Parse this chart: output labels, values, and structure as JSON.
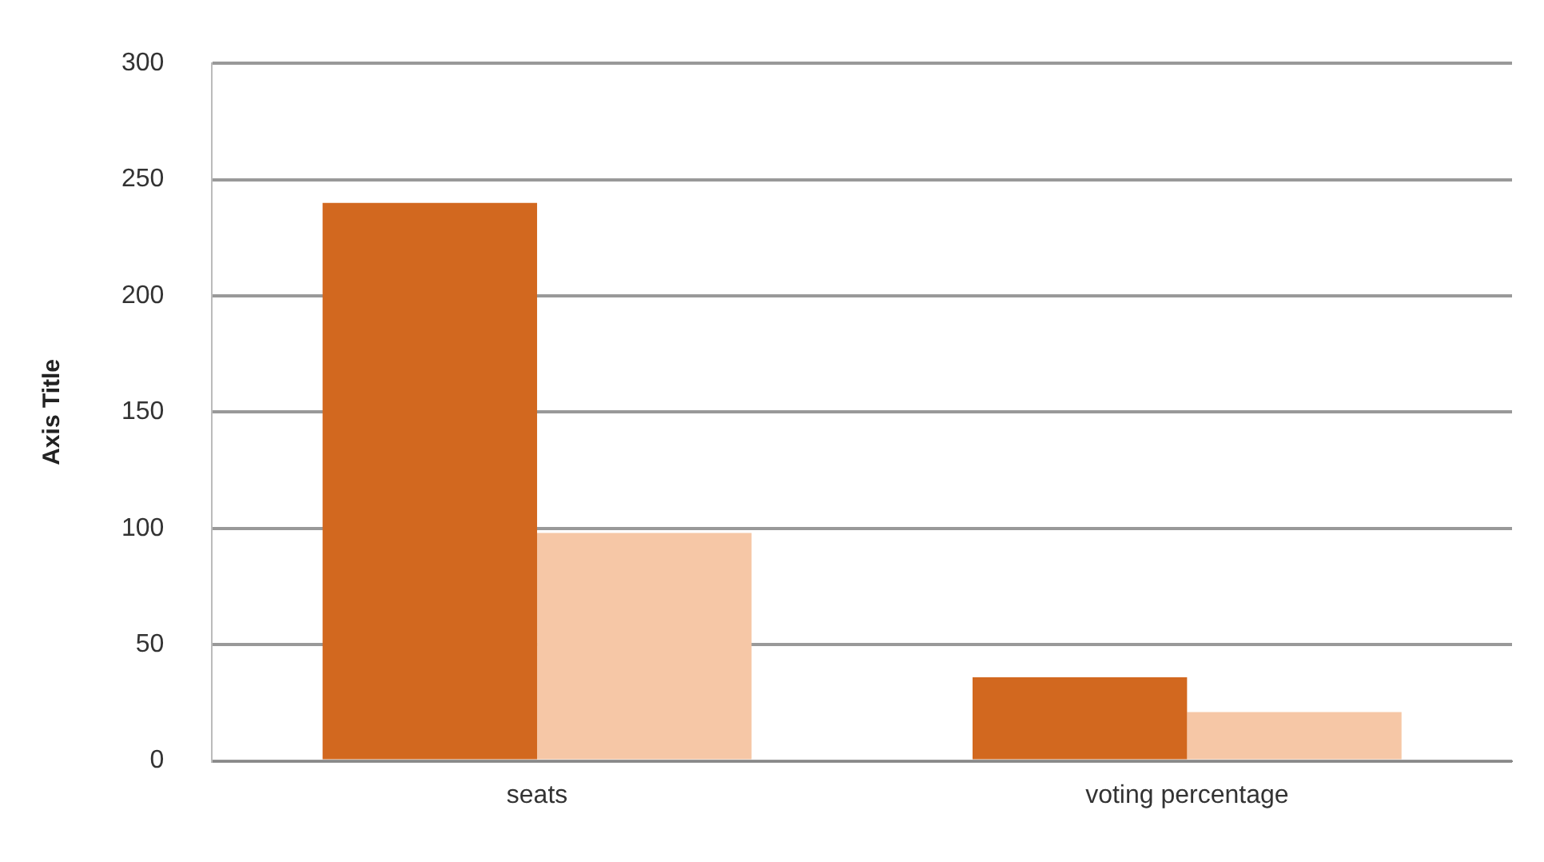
{
  "chart_data": {
    "type": "bar",
    "ylabel": "Axis Title",
    "categories": [
      "seats",
      "voting percentage"
    ],
    "series": [
      {
        "color": "#d2681f",
        "values": [
          240,
          36
        ]
      },
      {
        "color": "#f6c7a6",
        "values": [
          98,
          21
        ]
      }
    ],
    "ylim": [
      0,
      300
    ],
    "yticks": [
      0,
      50,
      100,
      150,
      200,
      250,
      300
    ],
    "grid": "y",
    "legend": false
  }
}
